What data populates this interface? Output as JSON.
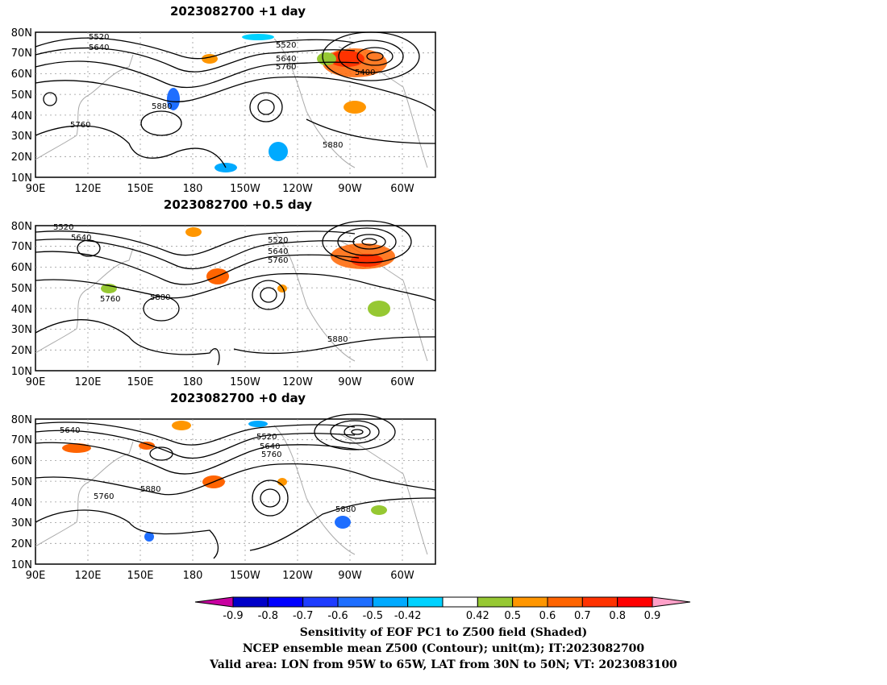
{
  "panels": [
    {
      "title": "2023082700  +1  day"
    },
    {
      "title": "2023082700  +0.5  day"
    },
    {
      "title": "2023082700  +0  day"
    }
  ],
  "axes": {
    "lat_labels": [
      "80N",
      "70N",
      "60N",
      "50N",
      "40N",
      "30N",
      "20N",
      "10N"
    ],
    "lon_labels": [
      "90E",
      "120E",
      "150E",
      "180",
      "150W",
      "120W",
      "90W",
      "60W"
    ]
  },
  "contour_labels": {
    "panel1": [
      "5520",
      "5640",
      "5520",
      "5640",
      "5760",
      "5400",
      "5880",
      "5760",
      "5880"
    ],
    "panel2": [
      "5520",
      "5640",
      "5520",
      "5640",
      "5760",
      "5760",
      "5880",
      "5880"
    ],
    "panel3": [
      "5640",
      "5520",
      "5640",
      "5760",
      "5760",
      "5880",
      "5880"
    ]
  },
  "colorbar": {
    "ticks": [
      "-0.9",
      "-0.8",
      "-0.7",
      "-0.6",
      "-0.5",
      "-0.42",
      "0.42",
      "0.5",
      "0.6",
      "0.7",
      "0.8",
      "0.9"
    ],
    "colors": [
      "#0000c8",
      "#0000ff",
      "#1e3cff",
      "#1e6eff",
      "#00aaff",
      "#00d2ff",
      "#ffffff",
      "#96c832",
      "#ff9600",
      "#ff6400",
      "#ff3200",
      "#ff0000"
    ],
    "low_extend_color": "#c800a0",
    "high_extend_color": "#ffa0c8"
  },
  "caption": {
    "line1": "Sensitivity of EOF PC1 to Z500 field (Shaded)",
    "line2": "NCEP ensemble mean Z500 (Contour); unit(m); IT:2023082700",
    "line3": "Valid area: LON from 95W to 65W, LAT from 30N to 50N; VT: 2023083100"
  }
}
